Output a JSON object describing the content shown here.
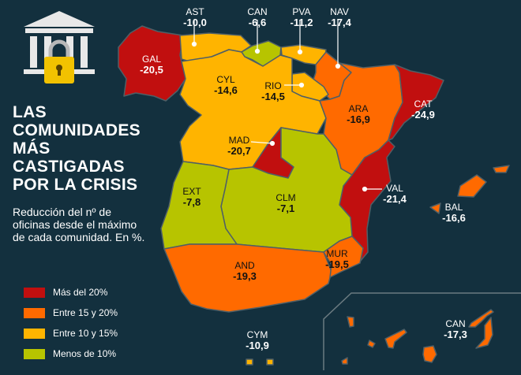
{
  "title_lines": [
    "LAS",
    "COMUNIDADES",
    "MÁS",
    "CASTIGADAS",
    "POR LA CRISIS"
  ],
  "subtitle": "Reducción del nº de oficinas desde el máximo de cada comunidad. En %.",
  "icon": "bank-lock-icon",
  "legend": [
    {
      "label": "Más del 20%",
      "color": "#c10f0f"
    },
    {
      "label": "Entre 15 y 20%",
      "color": "#ff6a00"
    },
    {
      "label": "Entre 10 y 15%",
      "color": "#ffb400"
    },
    {
      "label": "Menos de 10%",
      "color": "#b7c400"
    }
  ],
  "regions": {
    "gal": {
      "code": "GAL",
      "value": "-20,5",
      "color": "#c10f0f"
    },
    "ast": {
      "code": "AST",
      "value": "-10,0",
      "color": "#ffb400"
    },
    "can": {
      "code": "CAN",
      "value": "-6,6",
      "color": "#b7c400"
    },
    "pva": {
      "code": "PVA",
      "value": "-11,2",
      "color": "#ffb400"
    },
    "nav": {
      "code": "NAV",
      "value": "-17,4",
      "color": "#ff6a00"
    },
    "cyl": {
      "code": "CYL",
      "value": "-14,6",
      "color": "#ffb400"
    },
    "rio": {
      "code": "RIO",
      "value": "-14,5",
      "color": "#ffb400"
    },
    "ara": {
      "code": "ARA",
      "value": "-16,9",
      "color": "#ff6a00"
    },
    "cat": {
      "code": "CAT",
      "value": "-24,9",
      "color": "#c10f0f"
    },
    "mad": {
      "code": "MAD",
      "value": "-20,7",
      "color": "#c10f0f"
    },
    "ext": {
      "code": "EXT",
      "value": "-7,8",
      "color": "#b7c400"
    },
    "clm": {
      "code": "CLM",
      "value": "-7,1",
      "color": "#b7c400"
    },
    "val": {
      "code": "VAL",
      "value": "-21,4",
      "color": "#c10f0f"
    },
    "bal": {
      "code": "BAL",
      "value": "-16,6",
      "color": "#ff6a00"
    },
    "and": {
      "code": "AND",
      "value": "-19,3",
      "color": "#ff6a00"
    },
    "mur": {
      "code": "MUR",
      "value": "-19,5",
      "color": "#ff6a00"
    },
    "cym": {
      "code": "CYM",
      "value": "-10,9",
      "color": "#ffb400"
    },
    "cnr": {
      "code": "CAN",
      "value": "-17,3",
      "color": "#ff6a00"
    }
  }
}
